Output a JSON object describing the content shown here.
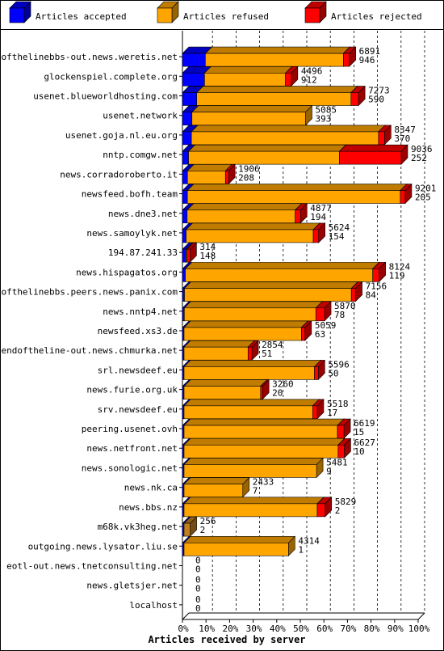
{
  "legend": [
    {
      "label": "Articles accepted",
      "color": "#0000ff"
    },
    {
      "label": "Articles refused",
      "color": "#ffa500"
    },
    {
      "label": "Articles rejected",
      "color": "#ff0000"
    }
  ],
  "colors": {
    "accepted": "#0000ff",
    "refused": "#ffa500",
    "rejected": "#ff0000",
    "refused_small": "#c08020"
  },
  "chart_data": {
    "type": "bar",
    "orientation": "horizontal",
    "stacked": true,
    "xlabel": "Articles received by server",
    "ylabel": "",
    "x_ticks": [
      "0%",
      "10%",
      "20%",
      "30%",
      "40%",
      "50%",
      "60%",
      "70%",
      "80%",
      "90%",
      "100%"
    ],
    "grid": "vertical dashed lines",
    "legend_position": "top",
    "categories": [
      "endofthelinebbs-out.news.weretis.net",
      "glockenspiel.complete.org",
      "usenet.blueworldhosting.com",
      "usenet.network",
      "usenet.goja.nl.eu.org",
      "nntp.comgw.net",
      "news.corradoroberto.it",
      "newsfeed.bofh.team",
      "news.dne3.net",
      "news.samoylyk.net",
      "194.87.241.33",
      "news.hispagatos.org",
      "endofthelinebbs.peers.news.panix.com",
      "news.nntp4.net",
      "newsfeed.xs3.de",
      "endoftheline-out.news.chmurka.net",
      "srl.newsdeef.eu",
      "news.furie.org.uk",
      "srv.newsdeef.eu",
      "peering.usenet.ovh",
      "news.netfront.net",
      "news.sonologic.net",
      "news.nk.ca",
      "news.bbs.nz",
      "m68k.vk3heg.net",
      "outgoing.news.lysator.liu.se",
      "eotl-out.news.tnetconsulting.net",
      "news.gletsjer.net",
      "localhost"
    ],
    "totals": [
      6891,
      4496,
      7273,
      5085,
      8347,
      9036,
      1906,
      9201,
      4877,
      5624,
      314,
      8124,
      7156,
      5870,
      5059,
      2854,
      5596,
      3260,
      5518,
      6619,
      6627,
      5481,
      2433,
      5829,
      256,
      4314,
      0,
      0,
      0
    ],
    "series": [
      {
        "name": "Articles accepted",
        "values": [
          946,
          912,
          590,
          393,
          370,
          252,
          208,
          205,
          194,
          154,
          148,
          119,
          84,
          78,
          63,
          51,
          50,
          20,
          17,
          15,
          10,
          9,
          7,
          2,
          2,
          1,
          0,
          0,
          0
        ]
      },
      {
        "name": "Articles refused",
        "values": [
          5700,
          3344,
          6373,
          4692,
          7727,
          6234,
          1568,
          8796,
          4463,
          5250,
          38,
          7740,
          6892,
          5432,
          4846,
          2643,
          5386,
          3160,
          5311,
          6337,
          6363,
          5472,
          2426,
          5501,
          254,
          4313,
          0,
          0,
          0
        ]
      },
      {
        "name": "Articles rejected",
        "values": [
          245,
          240,
          310,
          0,
          250,
          2550,
          130,
          200,
          220,
          220,
          128,
          265,
          180,
          360,
          150,
          160,
          160,
          80,
          190,
          267,
          254,
          0,
          0,
          326,
          0,
          0,
          0,
          0,
          0
        ]
      }
    ]
  }
}
